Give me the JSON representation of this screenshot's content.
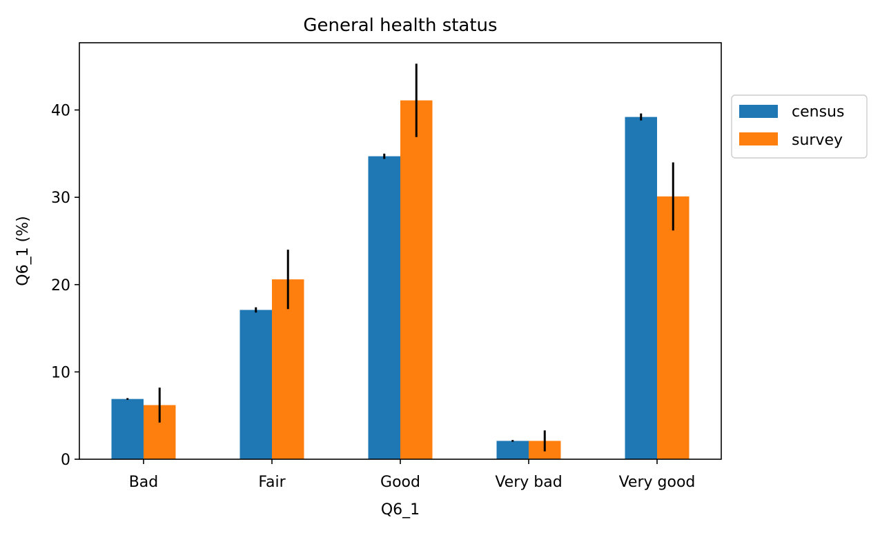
{
  "chart_data": {
    "type": "bar",
    "title": "General health status",
    "xlabel": "Q6_1",
    "ylabel": "Q6_1 (%)",
    "categories": [
      "Bad",
      "Fair",
      "Good",
      "Very bad",
      "Very good"
    ],
    "series": [
      {
        "name": "census",
        "color": "#1f77b4",
        "values": [
          6.9,
          17.1,
          34.7,
          2.1,
          39.2
        ],
        "err_low": [
          6.8,
          16.8,
          34.4,
          2.0,
          38.8
        ],
        "err_high": [
          7.0,
          17.4,
          35.0,
          2.2,
          39.6
        ]
      },
      {
        "name": "survey",
        "color": "#ff7f0e",
        "values": [
          6.2,
          20.6,
          41.1,
          2.1,
          30.1
        ],
        "err_low": [
          4.2,
          17.2,
          36.9,
          0.9,
          26.2
        ],
        "err_high": [
          8.2,
          24.0,
          45.3,
          3.3,
          34.0
        ]
      }
    ],
    "ylim": [
      0,
      47.7
    ],
    "yticks": [
      "0",
      "10",
      "20",
      "30",
      "40"
    ],
    "grid": false,
    "legend_position": "outside-right-top"
  }
}
